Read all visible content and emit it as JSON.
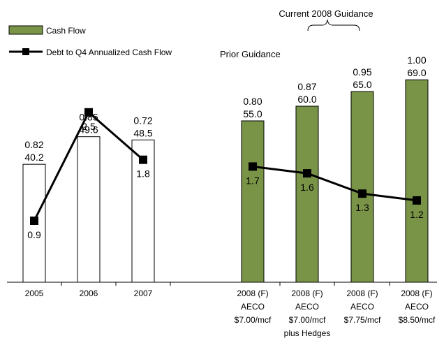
{
  "chart_data": {
    "type": "bar",
    "categories": [
      {
        "key": "2005",
        "lines": [
          "2005"
        ]
      },
      {
        "key": "2006",
        "lines": [
          "2006"
        ]
      },
      {
        "key": "2007",
        "lines": [
          "2007"
        ]
      },
      {
        "key": "2008-700",
        "lines": [
          "2008 (F)",
          "AECO",
          "$7.00/mcf"
        ]
      },
      {
        "key": "2008-700h",
        "lines": [
          "2008 (F)",
          "AECO",
          "$7.00/mcf",
          "plus Hedges"
        ]
      },
      {
        "key": "2008-775",
        "lines": [
          "2008 (F)",
          "AECO",
          "$7.75/mcf"
        ]
      },
      {
        "key": "2008-850",
        "lines": [
          "2008 (F)",
          "AECO",
          "$8.50/mcf"
        ]
      }
    ],
    "series": [
      {
        "name": "Cash Flow",
        "kind": "bar",
        "values": [
          40.2,
          49.6,
          48.5,
          55.0,
          60.0,
          65.0,
          69.0
        ],
        "value_labels": [
          "40.2",
          "49.6",
          "48.5",
          "55.0",
          "60.0",
          "65.0",
          "69.0"
        ],
        "per_unit_labels": [
          "0.82",
          "0.85",
          "0.72",
          "0.80",
          "0.87",
          "0.95",
          "1.00"
        ],
        "fills": [
          "#ffffff",
          "#ffffff",
          "#ffffff",
          "#7a9447",
          "#7a9447",
          "#7a9447",
          "#7a9447"
        ]
      },
      {
        "name": "Debt to Q4 Annualized Cash Flow",
        "kind": "line",
        "values": [
          0.9,
          2.5,
          1.8,
          1.7,
          1.6,
          1.3,
          1.2
        ],
        "value_labels": [
          "0.9",
          "2.5",
          "1.8",
          "1.7",
          "1.6",
          "1.3",
          "1.2"
        ]
      }
    ],
    "bar_ylim": [
      0,
      71
    ],
    "line_ylim": [
      0,
      2.9
    ],
    "annotations": {
      "prior_guidance": "Prior Guidance",
      "current_guidance": "Current 2008 Guidance"
    },
    "legend_position": "top-left",
    "grid": false,
    "colors": {
      "bar_historic": "#ffffff",
      "bar_forecast": "#7a9447",
      "line": "#000000"
    }
  }
}
